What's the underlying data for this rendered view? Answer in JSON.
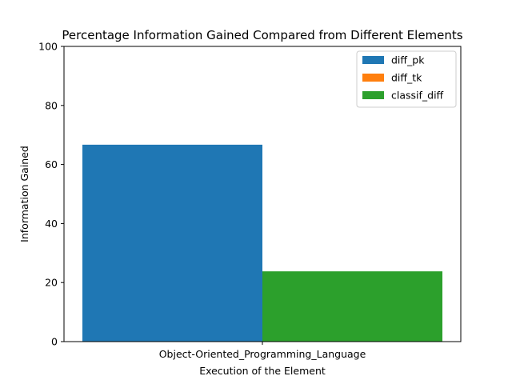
{
  "chart_data": {
    "type": "bar",
    "title": "Percentage Information Gained Compared from Different Elements",
    "xlabel": "Execution of the Element",
    "ylabel": "Information Gained",
    "categories": [
      "Object-Oriented_Programming_Language"
    ],
    "ylim": [
      0,
      100
    ],
    "yticks": [
      0,
      20,
      40,
      60,
      80,
      100
    ],
    "grid": false,
    "legend_position": "upper-right",
    "series": [
      {
        "name": "diff_pk",
        "values": [
          66.7
        ],
        "color": "#1f77b4"
      },
      {
        "name": "diff_tk",
        "values": [
          0
        ],
        "color": "#ff7f0e"
      },
      {
        "name": "classif_diff",
        "values": [
          23.8
        ],
        "color": "#2ca02c"
      }
    ]
  }
}
